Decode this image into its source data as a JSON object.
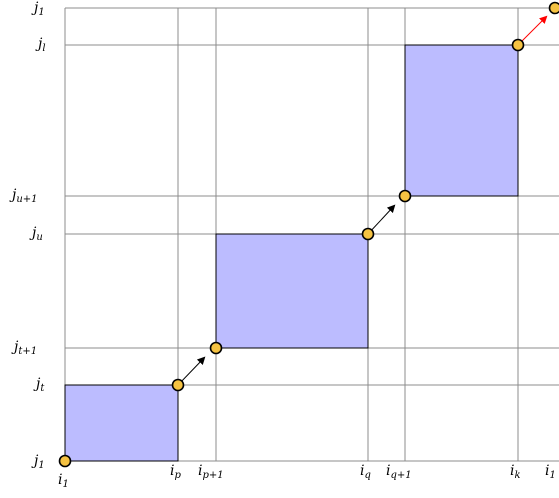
{
  "x_labels": [
    {
      "id": "i1",
      "base": "i",
      "sub": "1"
    },
    {
      "id": "ip",
      "base": "i",
      "sub": "p"
    },
    {
      "id": "ip1",
      "base": "i",
      "sub": "p+1"
    },
    {
      "id": "iq",
      "base": "i",
      "sub": "q"
    },
    {
      "id": "iq1",
      "base": "i",
      "sub": "q+1"
    },
    {
      "id": "ik",
      "base": "i",
      "sub": "k"
    },
    {
      "id": "i1r",
      "base": "i",
      "sub": "1"
    }
  ],
  "y_labels": [
    {
      "id": "j1top",
      "base": "j",
      "sub": "1"
    },
    {
      "id": "jl",
      "base": "j",
      "sub": "l"
    },
    {
      "id": "ju1",
      "base": "j",
      "sub": "u+1"
    },
    {
      "id": "ju",
      "base": "j",
      "sub": "u"
    },
    {
      "id": "jt1",
      "base": "j",
      "sub": "t+1"
    },
    {
      "id": "jt",
      "base": "j",
      "sub": "t"
    },
    {
      "id": "j1bot",
      "base": "j",
      "sub": "1"
    }
  ],
  "colors": {
    "block_fill": "#bcbcff",
    "node_fill": "#f5c242",
    "grid": "#8c8c8c",
    "edge": "#000000",
    "wrap_edge": "#ff0000"
  }
}
